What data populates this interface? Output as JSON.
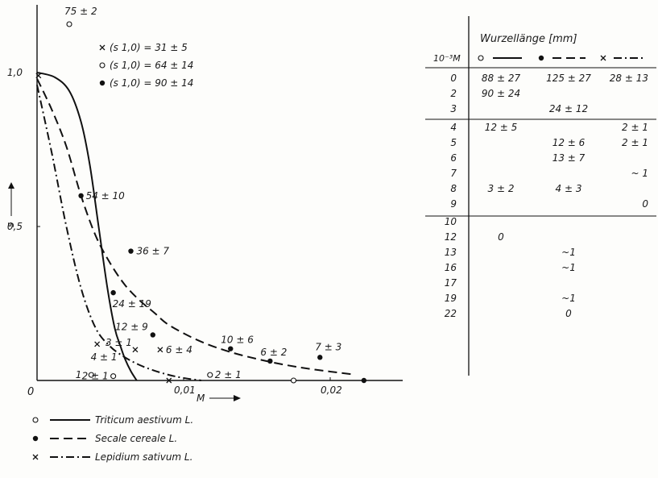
{
  "chart_data": {
    "type": "line",
    "xlabel": "M",
    "ylabel": "s",
    "xlim": [
      0,
      0.0245
    ],
    "ylim": [
      0,
      1.0
    ],
    "x_ticks": [
      {
        "v": 0.01,
        "label": "0,01"
      },
      {
        "v": 0.02,
        "label": "0,02"
      }
    ],
    "y_ticks": [
      {
        "v": 0.5,
        "label": "0,5"
      },
      {
        "v": 1.0,
        "label": "1,0"
      }
    ],
    "origin_label": "0",
    "s10_legend": [
      {
        "marker": "cross",
        "label": "(s 1,0) = 31 ± 5"
      },
      {
        "marker": "open",
        "label": "(s 1,0) = 64 ± 14"
      },
      {
        "marker": "filled",
        "label": "(s 1,0) = 90 ± 14"
      }
    ],
    "top_point": {
      "marker": "open",
      "label": "75 ± 2"
    },
    "series": [
      {
        "name": "Triticum aestivum L.",
        "marker": "open",
        "dash": "solid",
        "curve": [
          [
            0,
            1.0
          ],
          [
            0.0012,
            0.985
          ],
          [
            0.0022,
            0.94
          ],
          [
            0.003,
            0.84
          ],
          [
            0.0036,
            0.7
          ],
          [
            0.0042,
            0.5
          ],
          [
            0.0048,
            0.3
          ],
          [
            0.0053,
            0.17
          ],
          [
            0.0057,
            0.11
          ],
          [
            0.006,
            0.07
          ],
          [
            0.0064,
            0.03
          ],
          [
            0.0068,
            0.0
          ]
        ],
        "points": [
          {
            "x": 0.0037,
            "y": 0.018,
            "label": "1"
          },
          {
            "x": 0.0052,
            "y": 0.014,
            "label": "2 ± 1"
          },
          {
            "x": 0.0118,
            "y": 0.018,
            "label": "2 ± 1"
          },
          {
            "x": 0.0175,
            "y": 0.0,
            "label": ""
          }
        ]
      },
      {
        "name": "Secale cereale L.",
        "marker": "filled",
        "dash": "dashed",
        "curve": [
          [
            0,
            0.98
          ],
          [
            0.001,
            0.88
          ],
          [
            0.002,
            0.76
          ],
          [
            0.003,
            0.6
          ],
          [
            0.004,
            0.47
          ],
          [
            0.005,
            0.38
          ],
          [
            0.006,
            0.31
          ],
          [
            0.007,
            0.26
          ],
          [
            0.008,
            0.22
          ],
          [
            0.009,
            0.18
          ],
          [
            0.011,
            0.13
          ],
          [
            0.013,
            0.095
          ],
          [
            0.015,
            0.07
          ],
          [
            0.017,
            0.05
          ],
          [
            0.019,
            0.035
          ],
          [
            0.0215,
            0.02
          ]
        ],
        "points": [
          {
            "x": 0.003,
            "y": 0.6,
            "label": "54 ± 10"
          },
          {
            "x": 0.0064,
            "y": 0.42,
            "label": "36 ± 7"
          },
          {
            "x": 0.0052,
            "y": 0.285,
            "label": "24 ± 19"
          },
          {
            "x": 0.0079,
            "y": 0.148,
            "label": "12 ± 9"
          },
          {
            "x": 0.0132,
            "y": 0.103,
            "label": "10 ± 6"
          },
          {
            "x": 0.0159,
            "y": 0.063,
            "label": "6 ± 2"
          },
          {
            "x": 0.0193,
            "y": 0.075,
            "label": "7 ± 3"
          },
          {
            "x": 0.0223,
            "y": 0.0,
            "label": ""
          }
        ]
      },
      {
        "name": "Lepidium sativum L.",
        "marker": "cross",
        "dash": "dashdot",
        "curve": [
          [
            0,
            0.96
          ],
          [
            0.001,
            0.74
          ],
          [
            0.002,
            0.5
          ],
          [
            0.003,
            0.3
          ],
          [
            0.004,
            0.17
          ],
          [
            0.005,
            0.11
          ],
          [
            0.006,
            0.075
          ],
          [
            0.007,
            0.05
          ],
          [
            0.008,
            0.032
          ],
          [
            0.009,
            0.018
          ],
          [
            0.01,
            0.008
          ],
          [
            0.0112,
            0.0
          ]
        ],
        "points": [
          {
            "x": 0.0001,
            "y": 0.99,
            "label": ""
          },
          {
            "x": 0.0041,
            "y": 0.118,
            "label": "4 ± 1"
          },
          {
            "x": 0.0067,
            "y": 0.1,
            "label": "3 ± 1"
          },
          {
            "x": 0.009,
            "y": 0.0,
            "label": ""
          },
          {
            "x": 0.0084,
            "y": 0.1,
            "label": "6 ± 4"
          }
        ]
      }
    ]
  },
  "table": {
    "header_title": "Wurzellänge [mm]",
    "first_col_header": "10⁻³M",
    "rows": [
      {
        "c": "0",
        "t": "88 ± 27",
        "s": "125 ± 27",
        "l": "28 ± 13"
      },
      {
        "c": "2",
        "t": "90 ± 24",
        "s": "",
        "l": ""
      },
      {
        "c": "3",
        "t": "",
        "s": "24 ± 12",
        "l": ""
      },
      {
        "c": "4",
        "t": "12 ± 5",
        "s": "",
        "l": "2 ± 1"
      },
      {
        "c": "5",
        "t": "",
        "s": "12 ± 6",
        "l": "2 ± 1"
      },
      {
        "c": "6",
        "t": "",
        "s": "13 ± 7",
        "l": ""
      },
      {
        "c": "7",
        "t": "",
        "s": "",
        "l": "~ 1"
      },
      {
        "c": "8",
        "t": "3 ± 2",
        "s": "4 ± 3",
        "l": ""
      },
      {
        "c": "9",
        "t": "",
        "s": "",
        "l": "0"
      },
      {
        "c": "10",
        "t": "",
        "s": "",
        "l": ""
      },
      {
        "c": "12",
        "t": "0",
        "s": "",
        "l": ""
      },
      {
        "c": "13",
        "t": "",
        "s": "~1",
        "l": ""
      },
      {
        "c": "16",
        "t": "",
        "s": "~1",
        "l": ""
      },
      {
        "c": "17",
        "t": "",
        "s": "",
        "l": ""
      },
      {
        "c": "19",
        "t": "",
        "s": "~1",
        "l": ""
      },
      {
        "c": "22",
        "t": "",
        "s": "0",
        "l": ""
      }
    ]
  }
}
